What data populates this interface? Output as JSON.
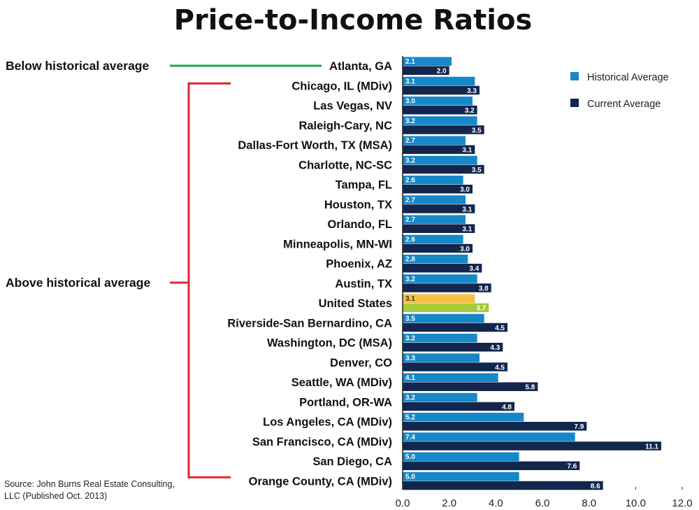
{
  "chart_data": {
    "type": "bar",
    "orientation": "horizontal",
    "title": "Price-to-Income Ratios",
    "categories": [
      "Atlanta, GA",
      "Chicago, IL (MDiv)",
      "Las Vegas, NV",
      "Raleigh-Cary, NC",
      "Dallas-Fort Worth, TX (MSA)",
      "Charlotte, NC-SC",
      "Tampa, FL",
      "Houston, TX",
      "Orlando, FL",
      "Minneapolis, MN-WI",
      "Phoenix, AZ",
      "Austin, TX",
      "United States",
      "Riverside-San Bernardino, CA",
      "Washington, DC (MSA)",
      "Denver, CO",
      "Seattle, WA (MDiv)",
      "Portland, OR-WA",
      "Los Angeles, CA (MDiv)",
      "San Francisco, CA (MDiv)",
      "San Diego, CA",
      "Orange County, CA (MDiv)"
    ],
    "series": [
      {
        "name": "Historical Average",
        "values": [
          2.1,
          3.1,
          3.0,
          3.2,
          2.7,
          3.2,
          2.6,
          2.7,
          2.7,
          2.6,
          2.8,
          3.2,
          3.1,
          3.5,
          3.2,
          3.3,
          4.1,
          3.2,
          5.2,
          7.4,
          5.0,
          5.0
        ]
      },
      {
        "name": "Current Average",
        "values": [
          2.0,
          3.3,
          3.2,
          3.5,
          3.1,
          3.5,
          3.0,
          3.1,
          3.1,
          3.0,
          3.4,
          3.8,
          3.7,
          4.5,
          4.3,
          4.5,
          5.8,
          4.8,
          7.9,
          11.1,
          7.6,
          8.6
        ]
      }
    ],
    "xlim": [
      0,
      12
    ],
    "xticks": [
      "0.0",
      "2.0",
      "4.0",
      "6.0",
      "8.0",
      "10.0",
      "12.0"
    ],
    "grid": false,
    "legend_position": "top-right",
    "highlight_category": "United States",
    "colors": {
      "historical": "#1688c8",
      "current": "#13264e",
      "highlight_historical": "#f5c042",
      "highlight_current": "#a7c93a",
      "below_bracket": "#1fa84a",
      "above_bracket": "#e0262f"
    },
    "groups": [
      {
        "label": "Below historical average",
        "from": "Atlanta, GA",
        "to": "Atlanta, GA"
      },
      {
        "label": "Above historical average",
        "from": "Chicago, IL (MDiv)",
        "to": "Orange County, CA (MDiv)"
      }
    ]
  },
  "source_note": "Source: John Burns Real Estate Consulting, LLC (Published Oct. 2013)"
}
